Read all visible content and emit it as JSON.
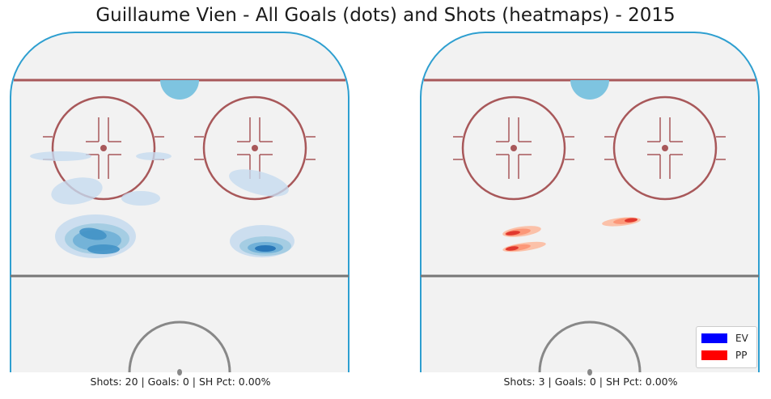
{
  "title": "Guillaume Vien - All Goals (dots) and Shots (heatmaps) - 2015",
  "colors": {
    "background": "#ffffff",
    "ice": "#f2f2f2",
    "boards": "#2e9fd0",
    "goal_line": "#a8585a",
    "blue_line": "#777777",
    "crease": "#7ec4e0",
    "faceoff": "#a8585a",
    "ev": "#0000ff",
    "pp": "#ff0000"
  },
  "chart_data": [
    {
      "type": "heatmap",
      "panel": "left",
      "caption": "Shots: 20 | Goals: 0 | SH Pct: 0.00%",
      "shots": 20,
      "goals": 0,
      "sh_pct": "0.00%",
      "strength": "EV",
      "color_scale": "blues",
      "grid": false
    },
    {
      "type": "heatmap",
      "panel": "right",
      "caption": "Shots: 3 | Goals: 0 | SH Pct: 0.00%",
      "shots": 3,
      "goals": 0,
      "sh_pct": "0.00%",
      "strength": "PP",
      "color_scale": "reds",
      "grid": false
    }
  ],
  "legend": {
    "placement": "lower-right",
    "entries": [
      {
        "label": "EV",
        "color": "#0000ff"
      },
      {
        "label": "PP",
        "color": "#ff0000"
      }
    ]
  }
}
